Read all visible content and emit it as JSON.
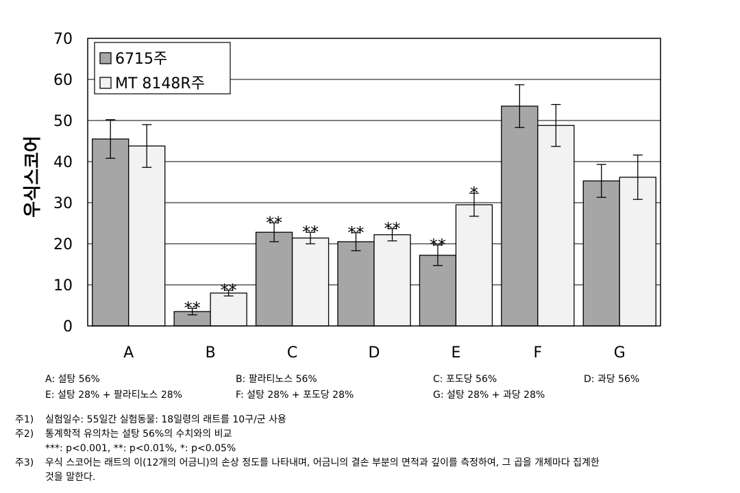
{
  "chart_data": {
    "type": "bar",
    "categories": [
      "A",
      "B",
      "C",
      "D",
      "E",
      "F",
      "G"
    ],
    "series": [
      {
        "name": "6715주",
        "color": "#a6a6a6",
        "values": [
          45.5,
          3.5,
          22.8,
          20.5,
          17.2,
          53.5,
          35.3
        ],
        "errors": [
          4.7,
          0.8,
          2.3,
          2.2,
          2.5,
          5.2,
          4.0
        ],
        "marks": [
          "",
          "**",
          "**",
          "**",
          "**",
          "",
          ""
        ]
      },
      {
        "name": "MT 8148R주",
        "color": "#f2f2f2",
        "values": [
          43.8,
          8.0,
          21.4,
          22.2,
          29.5,
          48.8,
          36.2
        ],
        "errors": [
          5.2,
          0.7,
          1.4,
          1.5,
          2.8,
          5.1,
          5.4
        ],
        "marks": [
          "",
          "**",
          "**",
          "**",
          "*",
          "",
          ""
        ]
      }
    ],
    "ylabel": "우식스코어",
    "ylim": [
      0,
      70
    ],
    "yticks": [
      0,
      10,
      20,
      30,
      40,
      50,
      60,
      70
    ],
    "grid": true,
    "legend_position": "top-left"
  },
  "legend_defs": {
    "A": "A: 설탕 56%",
    "B": "B: 팔라티노스 56%",
    "C": "C: 포도당 56%",
    "D": "D: 과당 56%",
    "E": "E: 설탕 28% + 팔라티노스 28%",
    "F": "F: 설탕 28% + 포도당 28%",
    "G": "G: 설탕 28% + 과당 28%"
  },
  "notes": {
    "n1_label": "주1)",
    "n1_text": "실험일수: 55일간 실험동물: 18일령의 래트를 10구/군 사용",
    "n2_label": "주2)",
    "n2_text": "통계학적 유의차는 설탕 56%의 수치와의 비교",
    "n2_sub": "***: p<0.001, **: p<0.01%, *: p<0.05%",
    "n3_label": "주3)",
    "n3_text": "우식 스코어는 래트의 이(12개의 어금니)의 손상 정도를 나타내며, 어금니의 결손 부분의 면적과 깊이를 측정하여, 그 곱을 개체마다 집계한",
    "n3_text2": "것을 말한다."
  }
}
